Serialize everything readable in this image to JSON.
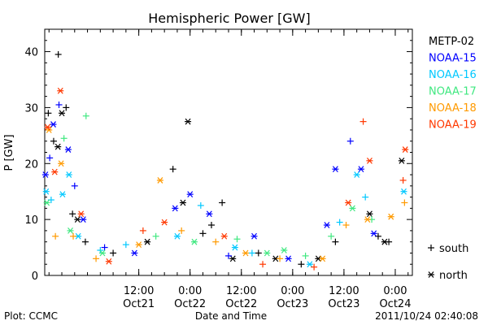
{
  "chart_data": {
    "type": "scatter",
    "title": "Hemispheric Power [GW]",
    "ylabel": "P [GW]",
    "xlabel": "Date and Time",
    "ylim": [
      0,
      44
    ],
    "xlim": [
      "2011-10-20 14:00",
      "2011-10-24 04:00"
    ],
    "yticks": [
      0,
      10,
      20,
      30,
      40
    ],
    "xticks": [
      {
        "at": "2011-10-21 12:00",
        "time": "12:00",
        "date": "Oct21"
      },
      {
        "at": "2011-10-22 00:00",
        "time": "0:00",
        "date": "Oct22"
      },
      {
        "at": "2011-10-22 12:00",
        "time": "12:00",
        "date": "Oct22"
      },
      {
        "at": "2011-10-23 00:00",
        "time": "0:00",
        "date": "Oct23"
      },
      {
        "at": "2011-10-23 12:00",
        "time": "12:00",
        "date": "Oct23"
      },
      {
        "at": "2011-10-24 00:00",
        "time": "0:00",
        "date": "Oct24"
      }
    ],
    "grid": false,
    "legend_position": "right",
    "series": [
      {
        "name": "METP-02",
        "color": "#000000",
        "points": [
          {
            "t": "2011-10-20 14:50",
            "v": 29,
            "h": "south"
          },
          {
            "t": "2011-10-20 16:05",
            "v": 24,
            "h": "south"
          },
          {
            "t": "2011-10-20 17:05",
            "v": 23,
            "h": "north"
          },
          {
            "t": "2011-10-20 17:10",
            "v": 39.5,
            "h": "south"
          },
          {
            "t": "2011-10-20 18:00",
            "v": 29,
            "h": "north"
          },
          {
            "t": "2011-10-20 19:00",
            "v": 30,
            "h": "south"
          },
          {
            "t": "2011-10-20 20:30",
            "v": 11,
            "h": "south"
          },
          {
            "t": "2011-10-20 21:40",
            "v": 10,
            "h": "north"
          },
          {
            "t": "2011-10-20 23:30",
            "v": 6,
            "h": "south"
          },
          {
            "t": "2011-10-21 06:00",
            "v": 4,
            "h": "south"
          },
          {
            "t": "2011-10-21 14:00",
            "v": 6,
            "h": "north"
          },
          {
            "t": "2011-10-21 20:00",
            "v": 19,
            "h": "south"
          },
          {
            "t": "2011-10-21 22:20",
            "v": 13,
            "h": "north"
          },
          {
            "t": "2011-10-21 23:30",
            "v": 27.5,
            "h": "north"
          },
          {
            "t": "2011-10-22 03:00",
            "v": 7.5,
            "h": "south"
          },
          {
            "t": "2011-10-22 05:00",
            "v": 9,
            "h": "south"
          },
          {
            "t": "2011-10-22 07:30",
            "v": 13,
            "h": "south"
          },
          {
            "t": "2011-10-22 10:00",
            "v": 3,
            "h": "north"
          },
          {
            "t": "2011-10-22 16:00",
            "v": 4,
            "h": "south"
          },
          {
            "t": "2011-10-22 20:00",
            "v": 3,
            "h": "north"
          },
          {
            "t": "2011-10-23 02:00",
            "v": 2,
            "h": "south"
          },
          {
            "t": "2011-10-23 06:00",
            "v": 3,
            "h": "north"
          },
          {
            "t": "2011-10-23 10:00",
            "v": 6,
            "h": "south"
          },
          {
            "t": "2011-10-23 18:00",
            "v": 11,
            "h": "north"
          },
          {
            "t": "2011-10-23 20:00",
            "v": 7,
            "h": "south"
          },
          {
            "t": "2011-10-23 21:30",
            "v": 6,
            "h": "north"
          },
          {
            "t": "2011-10-23 22:30",
            "v": 6,
            "h": "south"
          },
          {
            "t": "2011-10-24 01:30",
            "v": 20.5,
            "h": "north"
          }
        ]
      },
      {
        "name": "NOAA-15",
        "color": "#0000ff",
        "points": [
          {
            "t": "2011-10-20 14:10",
            "v": 18,
            "h": "north"
          },
          {
            "t": "2011-10-20 15:10",
            "v": 21,
            "h": "south"
          },
          {
            "t": "2011-10-20 16:00",
            "v": 27,
            "h": "north"
          },
          {
            "t": "2011-10-20 17:20",
            "v": 30.5,
            "h": "south"
          },
          {
            "t": "2011-10-20 19:30",
            "v": 22.5,
            "h": "north"
          },
          {
            "t": "2011-10-20 21:00",
            "v": 16,
            "h": "south"
          },
          {
            "t": "2011-10-20 23:00",
            "v": 10,
            "h": "north"
          },
          {
            "t": "2011-10-21 04:00",
            "v": 5,
            "h": "south"
          },
          {
            "t": "2011-10-21 11:00",
            "v": 4,
            "h": "north"
          },
          {
            "t": "2011-10-21 20:30",
            "v": 12,
            "h": "north"
          },
          {
            "t": "2011-10-22 00:00",
            "v": 14.5,
            "h": "north"
          },
          {
            "t": "2011-10-22 04:30",
            "v": 11,
            "h": "north"
          },
          {
            "t": "2011-10-22 09:00",
            "v": 3.5,
            "h": "south"
          },
          {
            "t": "2011-10-22 15:00",
            "v": 7,
            "h": "north"
          },
          {
            "t": "2011-10-22 23:00",
            "v": 3,
            "h": "north"
          },
          {
            "t": "2011-10-23 08:00",
            "v": 9,
            "h": "north"
          },
          {
            "t": "2011-10-23 10:00",
            "v": 19,
            "h": "north"
          },
          {
            "t": "2011-10-23 13:30",
            "v": 24,
            "h": "south"
          },
          {
            "t": "2011-10-23 16:00",
            "v": 19,
            "h": "north"
          },
          {
            "t": "2011-10-23 19:00",
            "v": 7.5,
            "h": "north"
          }
        ]
      },
      {
        "name": "NOAA-16",
        "color": "#00c8ff",
        "points": [
          {
            "t": "2011-10-20 14:20",
            "v": 15,
            "h": "north"
          },
          {
            "t": "2011-10-20 15:30",
            "v": 13.5,
            "h": "south"
          },
          {
            "t": "2011-10-20 18:10",
            "v": 14.5,
            "h": "north"
          },
          {
            "t": "2011-10-20 19:40",
            "v": 18,
            "h": "north"
          },
          {
            "t": "2011-10-20 21:50",
            "v": 7,
            "h": "north"
          },
          {
            "t": "2011-10-21 03:00",
            "v": 4.5,
            "h": "south"
          },
          {
            "t": "2011-10-21 09:00",
            "v": 5.5,
            "h": "south"
          },
          {
            "t": "2011-10-21 21:00",
            "v": 7,
            "h": "north"
          },
          {
            "t": "2011-10-22 02:30",
            "v": 12.5,
            "h": "south"
          },
          {
            "t": "2011-10-22 10:30",
            "v": 5,
            "h": "north"
          },
          {
            "t": "2011-10-22 14:30",
            "v": 4,
            "h": "south"
          },
          {
            "t": "2011-10-23 04:00",
            "v": 2,
            "h": "north"
          },
          {
            "t": "2011-10-23 11:00",
            "v": 9.5,
            "h": "south"
          },
          {
            "t": "2011-10-23 15:00",
            "v": 18,
            "h": "north"
          },
          {
            "t": "2011-10-23 17:00",
            "v": 14,
            "h": "south"
          },
          {
            "t": "2011-10-24 02:00",
            "v": 15,
            "h": "north"
          }
        ]
      },
      {
        "name": "NOAA-17",
        "color": "#40e880",
        "points": [
          {
            "t": "2011-10-20 14:30",
            "v": 13,
            "h": "north"
          },
          {
            "t": "2011-10-20 18:30",
            "v": 24.5,
            "h": "south"
          },
          {
            "t": "2011-10-20 20:00",
            "v": 8,
            "h": "north"
          },
          {
            "t": "2011-10-20 23:40",
            "v": 28.5,
            "h": "south"
          },
          {
            "t": "2011-10-21 03:30",
            "v": 4,
            "h": "north"
          },
          {
            "t": "2011-10-21 16:00",
            "v": 7,
            "h": "south"
          },
          {
            "t": "2011-10-22 01:00",
            "v": 6,
            "h": "north"
          },
          {
            "t": "2011-10-22 11:00",
            "v": 6.5,
            "h": "south"
          },
          {
            "t": "2011-10-22 18:00",
            "v": 4,
            "h": "north"
          },
          {
            "t": "2011-10-22 22:00",
            "v": 4.5,
            "h": "north"
          },
          {
            "t": "2011-10-23 03:00",
            "v": 3.5,
            "h": "south"
          },
          {
            "t": "2011-10-23 09:00",
            "v": 7,
            "h": "south"
          },
          {
            "t": "2011-10-23 14:00",
            "v": 12,
            "h": "north"
          },
          {
            "t": "2011-10-23 18:30",
            "v": 10,
            "h": "south"
          }
        ]
      },
      {
        "name": "NOAA-18",
        "color": "#ff9a00",
        "points": [
          {
            "t": "2011-10-20 15:00",
            "v": 26,
            "h": "north"
          },
          {
            "t": "2011-10-20 16:30",
            "v": 7,
            "h": "south"
          },
          {
            "t": "2011-10-20 17:50",
            "v": 20,
            "h": "north"
          },
          {
            "t": "2011-10-20 20:40",
            "v": 7,
            "h": "south"
          },
          {
            "t": "2011-10-21 02:00",
            "v": 3,
            "h": "south"
          },
          {
            "t": "2011-10-21 12:00",
            "v": 5.5,
            "h": "north"
          },
          {
            "t": "2011-10-21 17:00",
            "v": 17,
            "h": "north"
          },
          {
            "t": "2011-10-21 22:00",
            "v": 8,
            "h": "south"
          },
          {
            "t": "2011-10-22 06:00",
            "v": 6,
            "h": "south"
          },
          {
            "t": "2011-10-22 13:00",
            "v": 4,
            "h": "north"
          },
          {
            "t": "2011-10-22 21:00",
            "v": 3,
            "h": "south"
          },
          {
            "t": "2011-10-23 07:00",
            "v": 3,
            "h": "north"
          },
          {
            "t": "2011-10-23 12:30",
            "v": 9,
            "h": "south"
          },
          {
            "t": "2011-10-23 17:30",
            "v": 10,
            "h": "north"
          },
          {
            "t": "2011-10-23 23:00",
            "v": 10.5,
            "h": "north"
          },
          {
            "t": "2011-10-24 02:10",
            "v": 13,
            "h": "south"
          }
        ]
      },
      {
        "name": "NOAA-19",
        "color": "#ff3800",
        "points": [
          {
            "t": "2011-10-20 14:40",
            "v": 26.5,
            "h": "north"
          },
          {
            "t": "2011-10-20 16:20",
            "v": 18.5,
            "h": "north"
          },
          {
            "t": "2011-10-20 17:40",
            "v": 33,
            "h": "north"
          },
          {
            "t": "2011-10-20 22:30",
            "v": 11,
            "h": "north"
          },
          {
            "t": "2011-10-21 05:00",
            "v": 2.5,
            "h": "north"
          },
          {
            "t": "2011-10-21 13:00",
            "v": 8,
            "h": "south"
          },
          {
            "t": "2011-10-21 18:00",
            "v": 9.5,
            "h": "north"
          },
          {
            "t": "2011-10-22 08:00",
            "v": 7,
            "h": "north"
          },
          {
            "t": "2011-10-22 17:00",
            "v": 2,
            "h": "south"
          },
          {
            "t": "2011-10-23 05:00",
            "v": 1.5,
            "h": "south"
          },
          {
            "t": "2011-10-23 13:00",
            "v": 13,
            "h": "north"
          },
          {
            "t": "2011-10-23 16:30",
            "v": 27.5,
            "h": "south"
          },
          {
            "t": "2011-10-23 18:00",
            "v": 20.5,
            "h": "north"
          },
          {
            "t": "2011-10-24 01:50",
            "v": 17,
            "h": "south"
          },
          {
            "t": "2011-10-24 02:20",
            "v": 22.5,
            "h": "north"
          }
        ]
      }
    ],
    "markers": [
      {
        "symbol": "+",
        "label": "south"
      },
      {
        "symbol": "*",
        "label": "north"
      }
    ]
  },
  "footer": {
    "left": "Plot: CCMC",
    "right": "2011/10/24 02:40:08"
  }
}
